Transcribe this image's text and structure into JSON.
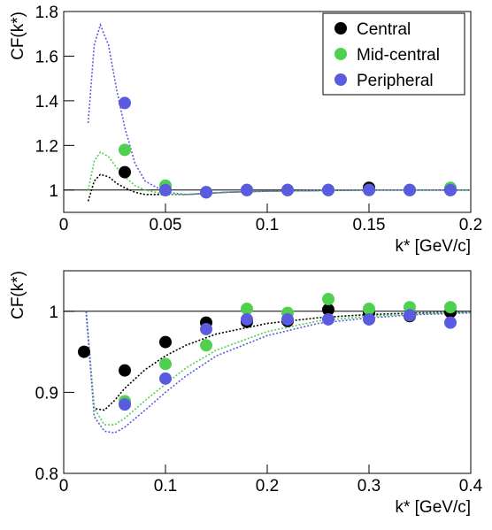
{
  "chart_data": [
    {
      "type": "scatter",
      "ylabel": "CF(k*)",
      "xlabel": "k* [GeV/c]",
      "xlim": [
        0,
        0.2
      ],
      "ylim": [
        0.9,
        1.8
      ],
      "xticks": [
        0,
        0.05,
        0.1,
        0.15,
        0.2
      ],
      "yticks": [
        1,
        1.2,
        1.4,
        1.6,
        1.8
      ],
      "hline": 1,
      "legend": "top-right",
      "x": [
        0.03,
        0.05,
        0.07,
        0.09,
        0.11,
        0.13,
        0.15,
        0.17,
        0.19
      ],
      "series": [
        {
          "name": "Central",
          "color": "#000000",
          "values": [
            1.08,
            1.0,
            0.99,
            1.0,
            1.0,
            1.0,
            1.01,
            1.0,
            1.0
          ]
        },
        {
          "name": "Mid-central",
          "color": "#4fd14f",
          "values": [
            1.18,
            1.02,
            0.99,
            1.0,
            1.0,
            1.0,
            1.0,
            1.0,
            1.01
          ]
        },
        {
          "name": "Peripheral",
          "color": "#5b5bdf",
          "values": [
            1.39,
            1.0,
            0.99,
            1.0,
            1.0,
            1.0,
            1.0,
            1.0,
            1.0
          ]
        }
      ],
      "fits": [
        {
          "color": "#000000",
          "x": [
            0.012,
            0.015,
            0.018,
            0.022,
            0.026,
            0.03,
            0.035,
            0.04,
            0.05,
            0.06,
            0.08,
            0.1,
            0.15,
            0.2
          ],
          "values": [
            0.95,
            1.04,
            1.07,
            1.06,
            1.03,
            1.01,
            0.99,
            0.98,
            0.98,
            0.98,
            0.99,
            0.995,
            1.0,
            1.0
          ]
        },
        {
          "color": "#4fd14f",
          "x": [
            0.012,
            0.015,
            0.018,
            0.022,
            0.026,
            0.03,
            0.035,
            0.04,
            0.05,
            0.06,
            0.08,
            0.1,
            0.15,
            0.2
          ],
          "values": [
            1.0,
            1.13,
            1.17,
            1.15,
            1.1,
            1.06,
            1.02,
            1.0,
            0.98,
            0.98,
            0.99,
            0.995,
            1.0,
            1.0
          ]
        },
        {
          "color": "#5b5bdf",
          "x": [
            0.012,
            0.015,
            0.018,
            0.022,
            0.026,
            0.03,
            0.035,
            0.04,
            0.05,
            0.06,
            0.08,
            0.1,
            0.15,
            0.2
          ],
          "values": [
            1.3,
            1.65,
            1.74,
            1.65,
            1.45,
            1.28,
            1.12,
            1.04,
            0.99,
            0.98,
            0.99,
            0.995,
            1.0,
            1.0
          ]
        }
      ]
    },
    {
      "type": "scatter",
      "ylabel": "CF(k*)",
      "xlabel": "k* [GeV/c]",
      "xlim": [
        0,
        0.4
      ],
      "ylim": [
        0.8,
        1.05
      ],
      "xticks": [
        0,
        0.1,
        0.2,
        0.3,
        0.4
      ],
      "yticks": [
        0.8,
        0.9,
        1
      ],
      "hline": 1,
      "x": [
        0.02,
        0.06,
        0.1,
        0.14,
        0.18,
        0.22,
        0.26,
        0.3,
        0.34,
        0.38
      ],
      "series": [
        {
          "name": "Central",
          "color": "#000000",
          "values": [
            0.95,
            0.927,
            0.962,
            0.986,
            0.987,
            0.988,
            1.002,
            0.998,
            0.994,
            0.999
          ]
        },
        {
          "name": "Mid-central",
          "color": "#4fd14f",
          "values": [
            null,
            0.889,
            0.935,
            0.958,
            1.003,
            0.998,
            1.015,
            1.003,
            1.005,
            1.005
          ]
        },
        {
          "name": "Peripheral",
          "color": "#5b5bdf",
          "values": [
            null,
            0.885,
            0.917,
            0.978,
            0.99,
            0.99,
            0.99,
            0.99,
            0.995,
            0.986
          ]
        }
      ],
      "fits": [
        {
          "color": "#000000",
          "x": [
            0.022,
            0.03,
            0.04,
            0.05,
            0.06,
            0.08,
            0.1,
            0.12,
            0.15,
            0.2,
            0.25,
            0.3,
            0.35,
            0.4
          ],
          "values": [
            1.0,
            0.88,
            0.878,
            0.89,
            0.905,
            0.928,
            0.945,
            0.958,
            0.972,
            0.985,
            0.992,
            0.996,
            0.998,
            0.999
          ]
        },
        {
          "color": "#4fd14f",
          "x": [
            0.022,
            0.03,
            0.04,
            0.05,
            0.06,
            0.08,
            0.1,
            0.12,
            0.15,
            0.2,
            0.25,
            0.3,
            0.35,
            0.4
          ],
          "values": [
            1.0,
            0.88,
            0.86,
            0.86,
            0.868,
            0.89,
            0.91,
            0.93,
            0.952,
            0.975,
            0.988,
            0.994,
            0.997,
            0.999
          ]
        },
        {
          "color": "#5b5bdf",
          "x": [
            0.022,
            0.03,
            0.04,
            0.05,
            0.06,
            0.08,
            0.1,
            0.12,
            0.15,
            0.2,
            0.25,
            0.3,
            0.35,
            0.4
          ],
          "values": [
            1.0,
            0.87,
            0.852,
            0.85,
            0.857,
            0.878,
            0.9,
            0.92,
            0.945,
            0.97,
            0.985,
            0.992,
            0.996,
            0.998
          ]
        }
      ]
    }
  ]
}
